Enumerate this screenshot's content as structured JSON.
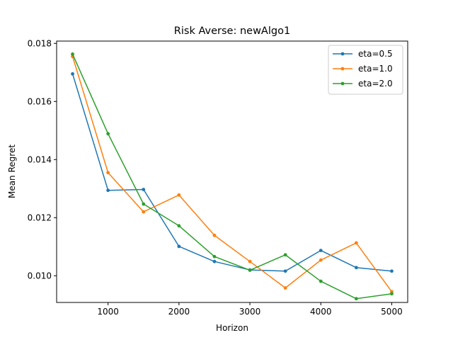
{
  "chart_data": {
    "type": "line",
    "title": "Risk Averse: newAlgo1",
    "xlabel": "Horizon",
    "ylabel": "Mean Regret",
    "xlim": [
      275,
      5225
    ],
    "ylim": [
      0.00908,
      0.01808
    ],
    "x_ticks": [
      1000,
      2000,
      3000,
      4000,
      5000
    ],
    "x_tick_labels": [
      "1000",
      "2000",
      "3000",
      "4000",
      "5000"
    ],
    "y_ticks": [
      0.01,
      0.012,
      0.014,
      0.016,
      0.018
    ],
    "y_tick_labels": [
      "0.010",
      "0.012",
      "0.014",
      "0.016",
      "0.018"
    ],
    "grid": false,
    "legend_position": "top-right",
    "x": [
      500,
      1000,
      1500,
      2000,
      2500,
      3000,
      3500,
      4000,
      4500,
      5000
    ],
    "series": [
      {
        "name": "eta=0.5",
        "color": "#1f77b4",
        "values": [
          0.01695,
          0.01294,
          0.01297,
          0.01101,
          0.01049,
          0.0102,
          0.01016,
          0.01087,
          0.01028,
          0.01016
        ]
      },
      {
        "name": "eta=1.0",
        "color": "#ff7f0e",
        "values": [
          0.01755,
          0.01355,
          0.0122,
          0.01278,
          0.01139,
          0.01049,
          0.00958,
          0.01054,
          0.01113,
          0.00945
        ]
      },
      {
        "name": "eta=2.0",
        "color": "#2ca02c",
        "values": [
          0.01763,
          0.01489,
          0.01247,
          0.01172,
          0.01066,
          0.01019,
          0.01072,
          0.00981,
          0.00921,
          0.00938
        ]
      }
    ]
  }
}
